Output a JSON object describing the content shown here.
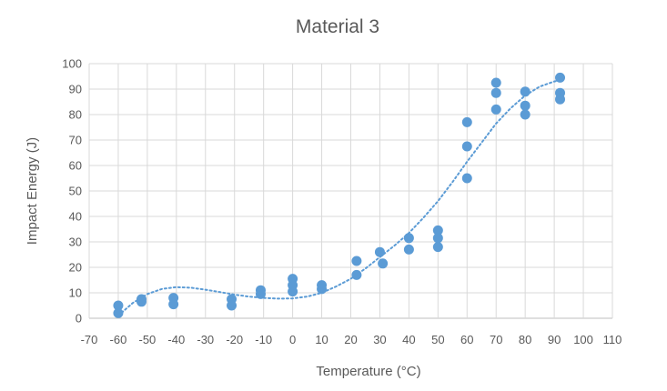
{
  "chart_data": {
    "type": "scatter",
    "title": "Material 3",
    "xlabel": "Temperature (°C)",
    "ylabel": "Impact Energy (J)",
    "xlim": [
      -70,
      110
    ],
    "ylim": [
      0,
      100
    ],
    "xticks": [
      -70,
      -60,
      -50,
      -40,
      -30,
      -20,
      -10,
      0,
      10,
      20,
      30,
      40,
      50,
      60,
      70,
      80,
      90,
      100,
      110
    ],
    "yticks": [
      0,
      10,
      20,
      30,
      40,
      50,
      60,
      70,
      80,
      90,
      100
    ],
    "grid": true,
    "legend": false,
    "trendline": "dotted polynomial",
    "points": [
      {
        "x": -60,
        "y": 5
      },
      {
        "x": -60,
        "y": 2
      },
      {
        "x": -52,
        "y": 7.5
      },
      {
        "x": -52,
        "y": 6.5
      },
      {
        "x": -41,
        "y": 8
      },
      {
        "x": -41,
        "y": 5.5
      },
      {
        "x": -21,
        "y": 7.5
      },
      {
        "x": -21,
        "y": 5
      },
      {
        "x": -11,
        "y": 11
      },
      {
        "x": -11,
        "y": 9.5
      },
      {
        "x": 0,
        "y": 15.5
      },
      {
        "x": 0,
        "y": 13
      },
      {
        "x": 0,
        "y": 10.5
      },
      {
        "x": 10,
        "y": 13
      },
      {
        "x": 10,
        "y": 11.5
      },
      {
        "x": 22,
        "y": 22.5
      },
      {
        "x": 22,
        "y": 17
      },
      {
        "x": 30,
        "y": 26
      },
      {
        "x": 31,
        "y": 21.5
      },
      {
        "x": 40,
        "y": 31.5
      },
      {
        "x": 40,
        "y": 27
      },
      {
        "x": 50,
        "y": 34.5
      },
      {
        "x": 50,
        "y": 31.5
      },
      {
        "x": 50,
        "y": 28
      },
      {
        "x": 60,
        "y": 77
      },
      {
        "x": 60,
        "y": 67.5
      },
      {
        "x": 60,
        "y": 55
      },
      {
        "x": 70,
        "y": 92.5
      },
      {
        "x": 70,
        "y": 88.5
      },
      {
        "x": 70,
        "y": 82
      },
      {
        "x": 80,
        "y": 89
      },
      {
        "x": 80,
        "y": 83.5
      },
      {
        "x": 80,
        "y": 80
      },
      {
        "x": 92,
        "y": 94.5
      },
      {
        "x": 92,
        "y": 88.5
      },
      {
        "x": 92,
        "y": 86
      }
    ],
    "trend_curve": [
      {
        "x": -60,
        "y": 1
      },
      {
        "x": -55,
        "y": 6
      },
      {
        "x": -50,
        "y": 9.5
      },
      {
        "x": -45,
        "y": 11.5
      },
      {
        "x": -40,
        "y": 12.2
      },
      {
        "x": -35,
        "y": 12
      },
      {
        "x": -30,
        "y": 11.2
      },
      {
        "x": -25,
        "y": 10.3
      },
      {
        "x": -20,
        "y": 9.3
      },
      {
        "x": -15,
        "y": 8.5
      },
      {
        "x": -10,
        "y": 8
      },
      {
        "x": -5,
        "y": 7.7
      },
      {
        "x": 0,
        "y": 7.8
      },
      {
        "x": 5,
        "y": 8.5
      },
      {
        "x": 10,
        "y": 10
      },
      {
        "x": 15,
        "y": 12.5
      },
      {
        "x": 20,
        "y": 15.5
      },
      {
        "x": 25,
        "y": 19.5
      },
      {
        "x": 30,
        "y": 24
      },
      {
        "x": 35,
        "y": 28.5
      },
      {
        "x": 40,
        "y": 33.5
      },
      {
        "x": 45,
        "y": 39.5
      },
      {
        "x": 50,
        "y": 46
      },
      {
        "x": 55,
        "y": 53.5
      },
      {
        "x": 60,
        "y": 61.5
      },
      {
        "x": 65,
        "y": 69
      },
      {
        "x": 70,
        "y": 76.5
      },
      {
        "x": 75,
        "y": 82.5
      },
      {
        "x": 80,
        "y": 87.5
      },
      {
        "x": 85,
        "y": 91
      },
      {
        "x": 90,
        "y": 93
      },
      {
        "x": 92,
        "y": 93.5
      }
    ],
    "colors": {
      "marker": "#5b9bd5",
      "trend": "#5b9bd5",
      "grid": "#d9d9d9",
      "text": "#595959"
    }
  }
}
